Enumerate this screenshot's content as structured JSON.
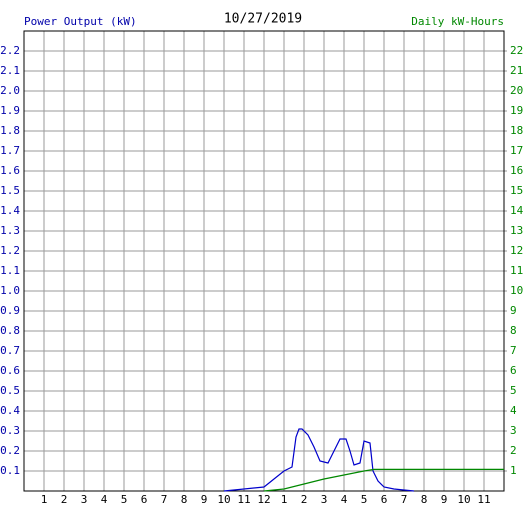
{
  "chart_data": {
    "type": "line",
    "title": "10/27/2019",
    "y_label": "Power Output (kW)",
    "y2_label": "Daily kW-Hours",
    "xlim": [
      0,
      24
    ],
    "xticks": [
      1,
      2,
      3,
      4,
      5,
      6,
      7,
      8,
      9,
      10,
      11,
      12,
      {
        "value": 13,
        "label": "1"
      },
      {
        "value": 14,
        "label": "2"
      },
      {
        "value": 15,
        "label": "3"
      },
      {
        "value": 16,
        "label": "4"
      },
      {
        "value": 17,
        "label": "5"
      },
      {
        "value": 18,
        "label": "6"
      },
      {
        "value": 19,
        "label": "7"
      },
      {
        "value": 20,
        "label": "8"
      },
      {
        "value": 21,
        "label": "9"
      },
      {
        "value": 22,
        "label": "10"
      },
      {
        "value": 23,
        "label": "11"
      }
    ],
    "ylim": [
      0,
      2.3
    ],
    "yticks": [
      0.1,
      0.2,
      0.3,
      0.4,
      0.5,
      0.6,
      0.7,
      0.8,
      0.9,
      {
        "value": 1,
        "label": "1.0"
      },
      1.1,
      1.2,
      1.3,
      1.4,
      1.5,
      1.6,
      1.7,
      1.8,
      1.9,
      {
        "value": 2,
        "label": "2.0"
      },
      2.1,
      2.2
    ],
    "y2lim": [
      0,
      23
    ],
    "y2ticks": [
      1,
      2,
      3,
      4,
      5,
      6,
      7,
      8,
      9,
      10,
      11,
      12,
      13,
      14,
      15,
      16,
      17,
      18,
      19,
      20,
      21,
      22
    ],
    "grid": true,
    "y_color": "#0000aa",
    "y2_color": "#008800",
    "series": [
      {
        "name": "Power Output (kW)",
        "color": "#0000cc",
        "x": [
          10,
          11,
          12,
          12.5,
          13,
          13.4,
          13.6,
          13.75,
          13.9,
          14.2,
          14.5,
          14.8,
          15.2,
          15.5,
          15.8,
          16.1,
          16.3,
          16.5,
          16.8,
          17.0,
          17.3,
          17.45,
          17.7,
          18.0,
          18.5,
          19.5
        ],
        "values": [
          0,
          0.01,
          0.02,
          0.06,
          0.1,
          0.12,
          0.27,
          0.31,
          0.31,
          0.28,
          0.22,
          0.15,
          0.14,
          0.2,
          0.26,
          0.26,
          0.2,
          0.13,
          0.14,
          0.25,
          0.24,
          0.1,
          0.05,
          0.02,
          0.01,
          0
        ]
      },
      {
        "name": "Daily kW-Hours",
        "color": "#008800",
        "axis": "y2",
        "x": [
          12,
          13,
          14,
          15,
          16,
          17,
          17.5,
          24
        ],
        "values": [
          0,
          0.1,
          0.35,
          0.6,
          0.8,
          1.0,
          1.08,
          1.08
        ]
      }
    ]
  }
}
